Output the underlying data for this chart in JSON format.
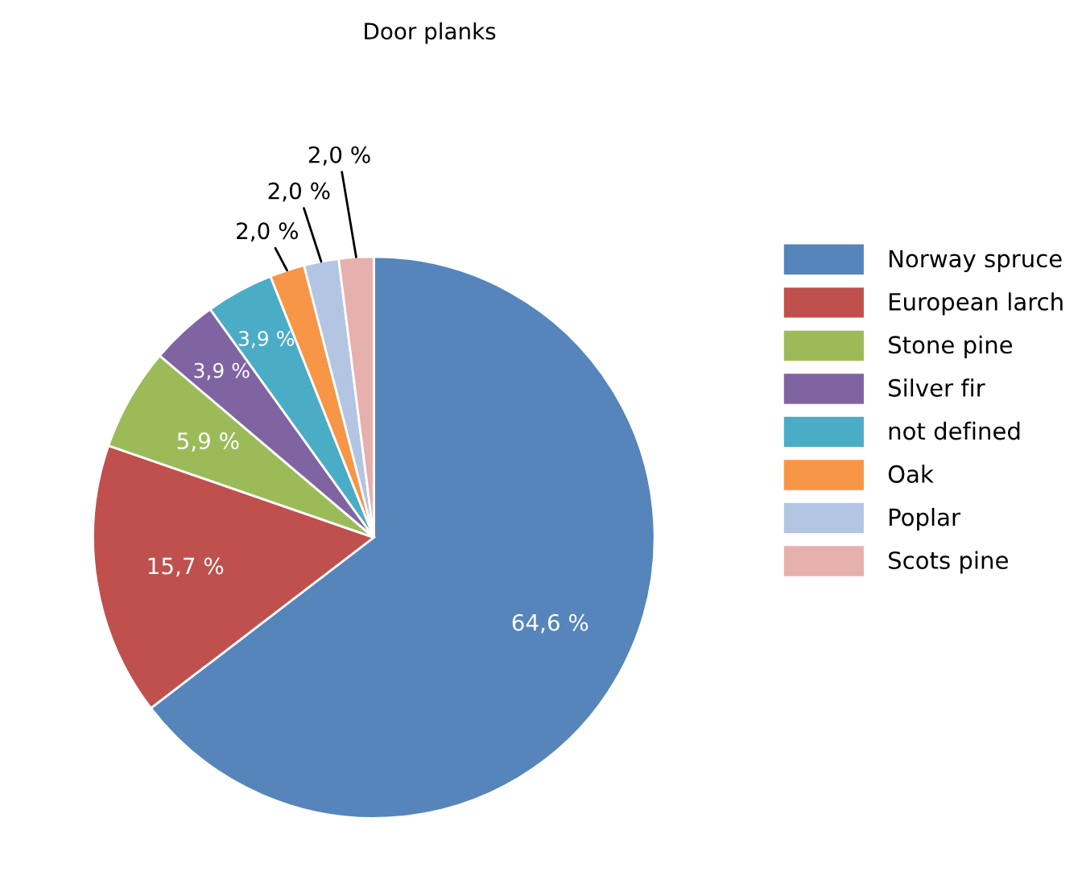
{
  "chart_data": {
    "type": "pie",
    "title": "Door planks",
    "categories": [
      "Norway spruce",
      "European larch",
      "Stone pine",
      "Silver fir",
      "not defined",
      "Oak",
      "Poplar",
      "Scots pine"
    ],
    "values": [
      64.6,
      15.7,
      5.9,
      3.9,
      3.9,
      2.0,
      2.0,
      2.0
    ],
    "colors": [
      "#5585bb",
      "#c0504d",
      "#9bbb59",
      "#8064a2",
      "#4bacc6",
      "#f79646",
      "#b3c5e3",
      "#e6b0ac"
    ],
    "value_labels": [
      "64,6 %",
      "15,7 %",
      "5,9 %",
      "3,9 %",
      "3,9 %",
      "2,0 %",
      "2,0 %",
      "2,0 %"
    ],
    "legend": "right"
  }
}
